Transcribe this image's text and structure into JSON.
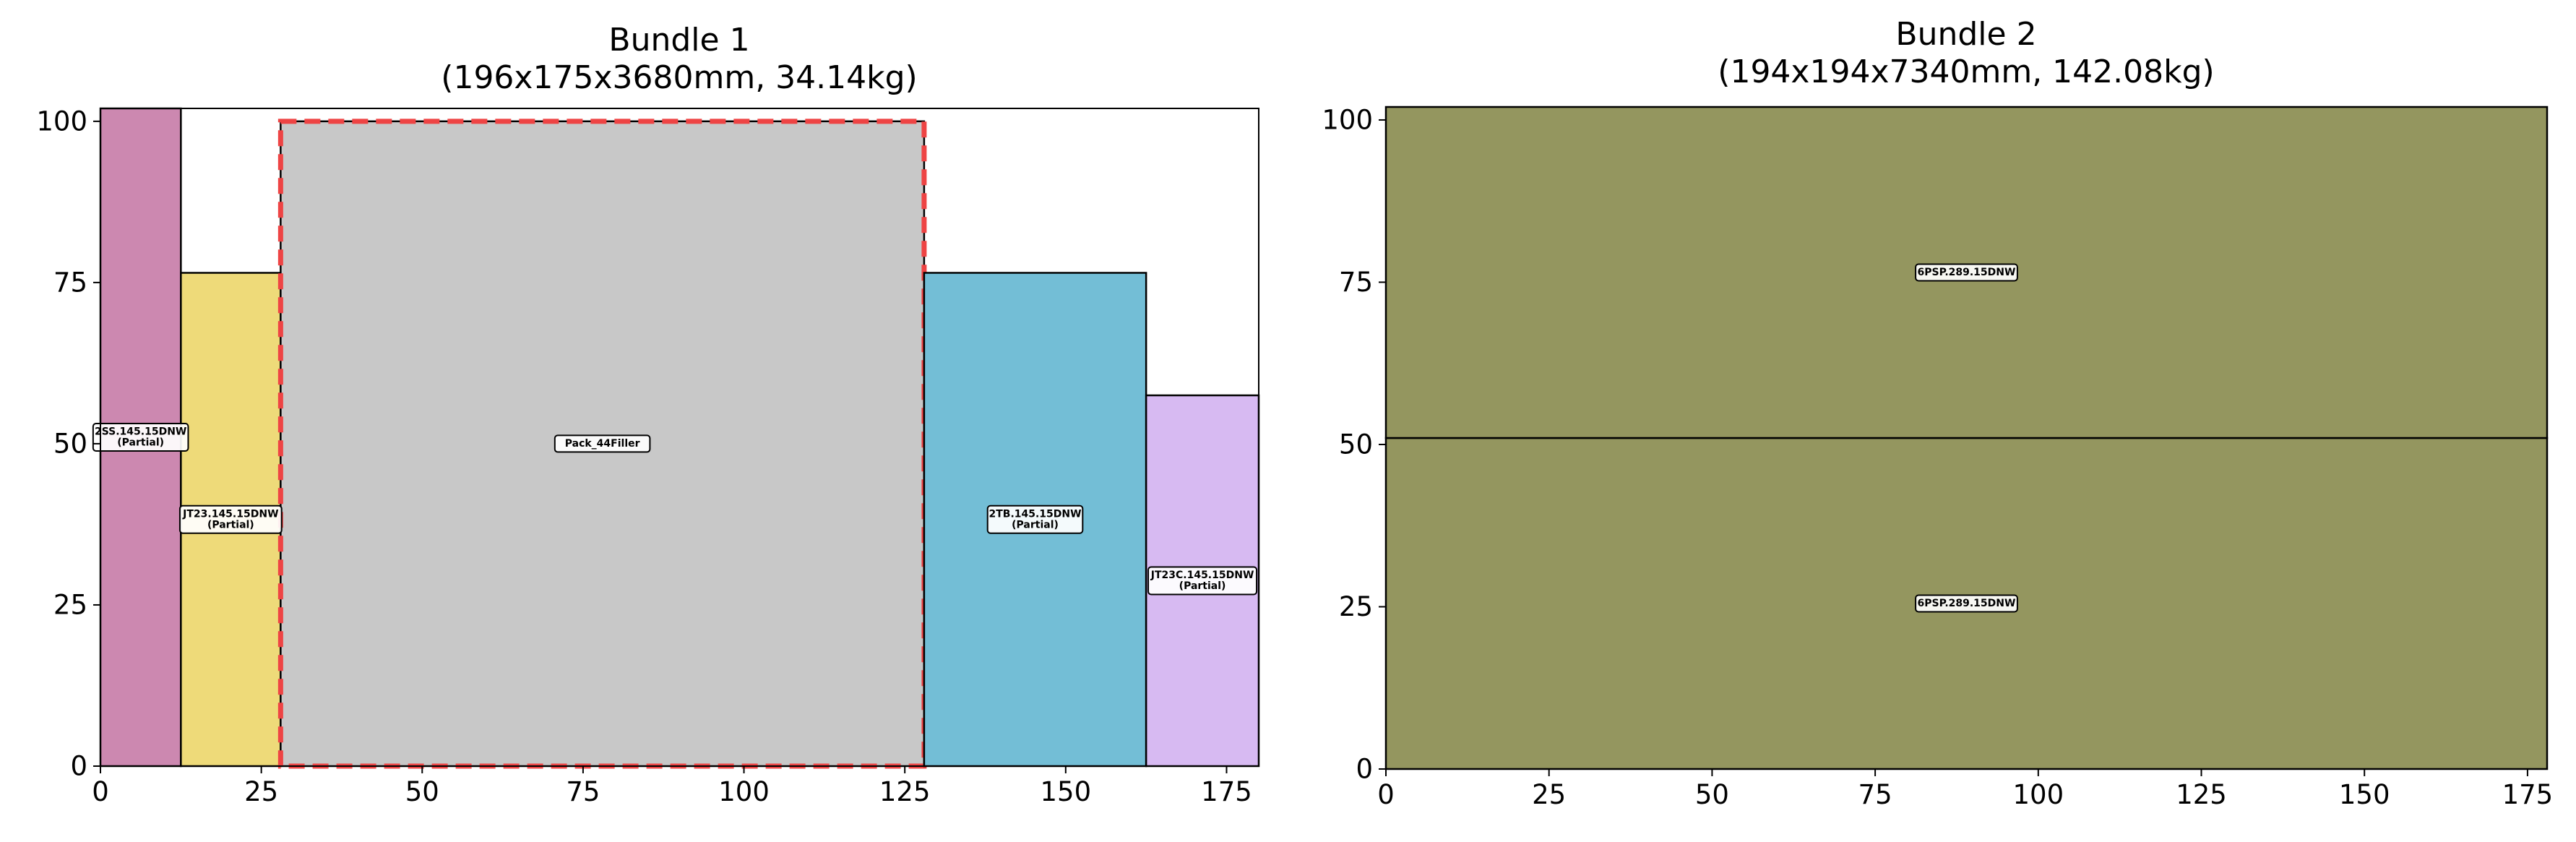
{
  "chart_data": [
    {
      "type": "rectangle-layout",
      "title": "Bundle 1",
      "subtitle": "(196x175x3680mm, 34.14kg)",
      "xlabel": "",
      "ylabel": "",
      "xlim": [
        0,
        180
      ],
      "ylim": [
        0,
        102
      ],
      "xticks": [
        0,
        25,
        50,
        75,
        100,
        125,
        150,
        175
      ],
      "yticks": [
        0,
        25,
        50,
        75,
        100
      ],
      "grid": false,
      "rects": [
        {
          "label": "2SS.145.15DNW",
          "sublabel": "(Partial)",
          "x": 0,
          "y": 0,
          "w": 12.5,
          "h": 102,
          "color": "#CC88B0"
        },
        {
          "label": "JT23.145.15DNW",
          "sublabel": "(Partial)",
          "x": 12.5,
          "y": 0,
          "w": 15.5,
          "h": 76.5,
          "color": "#EEDA79"
        },
        {
          "label": "Pack_44Filler",
          "sublabel": "",
          "x": 28,
          "y": 0,
          "w": 100,
          "h": 100,
          "color": "#C8C8C8",
          "outline": "dashed",
          "outline_color": "#EE4444"
        },
        {
          "label": "2TB.145.15DNW",
          "sublabel": "(Partial)",
          "x": 128,
          "y": 0,
          "w": 34.5,
          "h": 76.5,
          "color": "#73BED6"
        },
        {
          "label": "JT23C.145.15DNW",
          "sublabel": "(Partial)",
          "x": 162.5,
          "y": 0,
          "w": 17.5,
          "h": 57.5,
          "color": "#D7BAF2"
        }
      ]
    },
    {
      "type": "rectangle-layout",
      "title": "Bundle 2",
      "subtitle": "(194x194x7340mm, 142.08kg)",
      "xlabel": "",
      "ylabel": "",
      "xlim": [
        0,
        178
      ],
      "ylim": [
        0,
        102
      ],
      "xticks": [
        0,
        25,
        50,
        75,
        100,
        125,
        150,
        175
      ],
      "yticks": [
        0,
        25,
        50,
        75,
        100
      ],
      "grid": false,
      "rects": [
        {
          "label": "6PSP.289.15DNW",
          "sublabel": "",
          "x": 0,
          "y": 0,
          "w": 178,
          "h": 51,
          "color": "#94965F"
        },
        {
          "label": "6PSP.289.15DNW",
          "sublabel": "",
          "x": 0,
          "y": 51,
          "w": 178,
          "h": 51,
          "color": "#94965F"
        }
      ]
    }
  ]
}
